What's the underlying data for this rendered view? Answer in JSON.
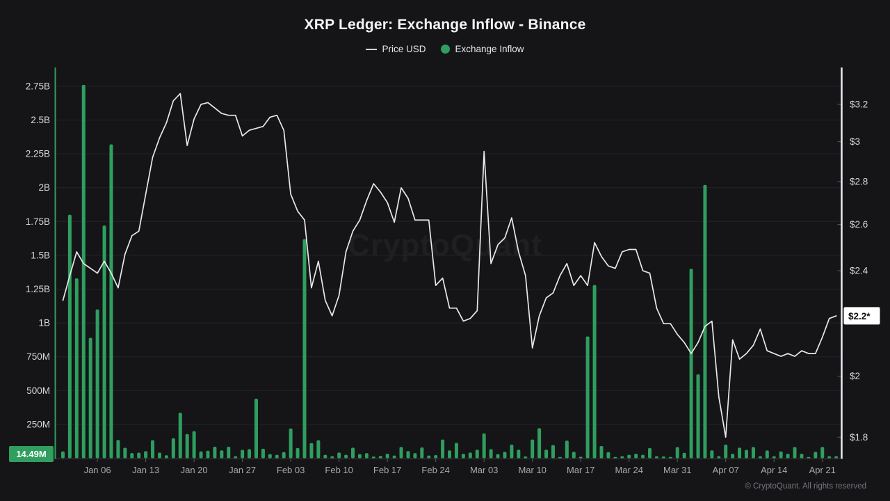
{
  "header": {
    "title": "XRP Ledger: Exchange Inflow - Binance"
  },
  "legend": [
    {
      "label": "Price USD",
      "type": "line",
      "color": "#d6d6da"
    },
    {
      "label": "Exchange Inflow",
      "type": "dot",
      "color": "#2f9e5f"
    }
  ],
  "watermark": "CryptoQuant",
  "footer": {
    "copyright": "© CryptoQuant. All rights reserved"
  },
  "colors": {
    "background": "#151518",
    "grid": "#242428",
    "bar": "#2f9e5f",
    "line": "#e8e8ea",
    "left_axis_line": "#2f9e5f",
    "right_axis_line": "#ececf0",
    "bottom_axis_line": "#3e3e43",
    "tick_mark": "#5a5a60",
    "tick_label": "#d8d8dc",
    "x_label": "#a8a8ae",
    "badge_left_bg": "#2f9e5f",
    "badge_left_text": "#ffffff",
    "badge_right_bg": "#ffffff",
    "badge_right_text": "#111114"
  },
  "left_axis": {
    "tick_labels": [
      "250M",
      "500M",
      "750M",
      "1B",
      "1.25B",
      "1.5B",
      "1.75B",
      "2B",
      "2.25B",
      "2.5B",
      "2.75B"
    ],
    "current_value_badge": "14.49M"
  },
  "right_axis": {
    "tick_labels": [
      "$1.8",
      "$2",
      "$2.2",
      "$2.4",
      "$2.6",
      "$2.8",
      "$3",
      "$3.2"
    ],
    "tick_values": [
      1.8,
      2,
      2.2,
      2.4,
      2.6,
      2.8,
      3,
      3.2
    ],
    "hidden_tick": 2.2,
    "current_price_badge": "$2.2*"
  },
  "x_axis": {
    "labels": [
      "Jan 06",
      "Jan 13",
      "Jan 20",
      "Jan 27",
      "Feb 03",
      "Feb 10",
      "Feb 17",
      "Feb 24",
      "Mar 03",
      "Mar 10",
      "Mar 17",
      "Mar 24",
      "Mar 31",
      "Apr 07",
      "Apr 14",
      "Apr 21"
    ]
  },
  "chart_data": {
    "type": "bar+line",
    "title": "XRP Ledger: Exchange Inflow - Binance",
    "grid": "horizontal",
    "legend_position": "top",
    "left_axis": {
      "scale": "linear",
      "unit": "XRP",
      "tick_step_millions": 250,
      "range_millions": [
        0,
        2870
      ]
    },
    "right_axis": {
      "scale": "log",
      "unit": "USD",
      "ticks": [
        1.8,
        2,
        2.2,
        2.4,
        2.6,
        2.8,
        3,
        3.2
      ]
    },
    "latest": {
      "exchange_inflow": "14.49M",
      "price_usd": "$2.2"
    },
    "dates": [
      "Jan 01",
      "Jan 02",
      "Jan 03",
      "Jan 04",
      "Jan 05",
      "Jan 06",
      "Jan 07",
      "Jan 08",
      "Jan 09",
      "Jan 10",
      "Jan 11",
      "Jan 12",
      "Jan 13",
      "Jan 14",
      "Jan 15",
      "Jan 16",
      "Jan 17",
      "Jan 18",
      "Jan 19",
      "Jan 20",
      "Jan 21",
      "Jan 22",
      "Jan 23",
      "Jan 24",
      "Jan 25",
      "Jan 26",
      "Jan 27",
      "Jan 28",
      "Jan 29",
      "Jan 30",
      "Jan 31",
      "Feb 01",
      "Feb 02",
      "Feb 03",
      "Feb 04",
      "Feb 05",
      "Feb 06",
      "Feb 07",
      "Feb 08",
      "Feb 09",
      "Feb 10",
      "Feb 11",
      "Feb 12",
      "Feb 13",
      "Feb 14",
      "Feb 15",
      "Feb 16",
      "Feb 17",
      "Feb 18",
      "Feb 19",
      "Feb 20",
      "Feb 21",
      "Feb 22",
      "Feb 23",
      "Feb 24",
      "Feb 25",
      "Feb 26",
      "Feb 27",
      "Feb 28",
      "Mar 01",
      "Mar 02",
      "Mar 03",
      "Mar 04",
      "Mar 05",
      "Mar 06",
      "Mar 07",
      "Mar 08",
      "Mar 09",
      "Mar 10",
      "Mar 11",
      "Mar 12",
      "Mar 13",
      "Mar 14",
      "Mar 15",
      "Mar 16",
      "Mar 17",
      "Mar 18",
      "Mar 19",
      "Mar 20",
      "Mar 21",
      "Mar 22",
      "Mar 23",
      "Mar 24",
      "Mar 25",
      "Mar 26",
      "Mar 27",
      "Mar 28",
      "Mar 29",
      "Mar 30",
      "Mar 31",
      "Apr 01",
      "Apr 02",
      "Apr 03",
      "Apr 04",
      "Apr 05",
      "Apr 06",
      "Apr 07",
      "Apr 08",
      "Apr 09",
      "Apr 10",
      "Apr 11",
      "Apr 12",
      "Apr 13",
      "Apr 14",
      "Apr 15",
      "Apr 16",
      "Apr 17",
      "Apr 18",
      "Apr 19",
      "Apr 20",
      "Apr 21",
      "Apr 22",
      "Apr 23"
    ],
    "series": [
      {
        "name": "Exchange Inflow",
        "type": "bar",
        "axis": "left",
        "unit": "millions XRP",
        "values_millions": [
          50,
          1800,
          1330,
          2760,
          890,
          1100,
          1720,
          2320,
          135,
          77,
          38,
          41,
          52,
          133,
          41,
          22,
          148,
          336,
          179,
          200,
          50,
          55,
          85,
          58,
          85,
          15,
          62,
          67,
          440,
          70,
          30,
          25,
          45,
          220,
          75,
          1620,
          112,
          133,
          25,
          15,
          42,
          25,
          78,
          30,
          37,
          12,
          17,
          33,
          20,
          83,
          53,
          37,
          80,
          20,
          23,
          138,
          58,
          113,
          33,
          42,
          63,
          183,
          67,
          30,
          47,
          100,
          63,
          13,
          138,
          222,
          63,
          97,
          8,
          130,
          47,
          10,
          900,
          1280,
          90,
          45,
          8,
          15,
          25,
          33,
          25,
          75,
          15,
          13,
          8,
          82,
          40,
          1400,
          620,
          2020,
          58,
          15,
          100,
          33,
          78,
          62,
          83,
          15,
          57,
          15,
          50,
          33,
          82,
          33,
          5,
          47,
          83,
          15,
          14.49
        ]
      },
      {
        "name": "Price USD",
        "type": "line",
        "axis": "right",
        "unit": "USD",
        "values": [
          2.28,
          2.38,
          2.48,
          2.43,
          2.41,
          2.39,
          2.44,
          2.39,
          2.33,
          2.47,
          2.55,
          2.57,
          2.74,
          2.92,
          3.02,
          3.1,
          3.22,
          3.26,
          2.98,
          3.12,
          3.2,
          3.21,
          3.18,
          3.15,
          3.14,
          3.14,
          3.03,
          3.06,
          3.07,
          3.08,
          3.13,
          3.14,
          3.06,
          2.74,
          2.66,
          2.62,
          2.33,
          2.44,
          2.28,
          2.22,
          2.3,
          2.48,
          2.57,
          2.62,
          2.71,
          2.79,
          2.75,
          2.7,
          2.61,
          2.77,
          2.72,
          2.62,
          2.62,
          2.62,
          2.34,
          2.37,
          2.25,
          2.25,
          2.2,
          2.21,
          2.24,
          2.95,
          2.43,
          2.51,
          2.54,
          2.63,
          2.48,
          2.38,
          2.1,
          2.22,
          2.29,
          2.31,
          2.38,
          2.43,
          2.34,
          2.38,
          2.34,
          2.52,
          2.46,
          2.42,
          2.41,
          2.48,
          2.49,
          2.49,
          2.4,
          2.39,
          2.25,
          2.19,
          2.19,
          2.15,
          2.12,
          2.08,
          2.12,
          2.18,
          2.2,
          1.93,
          1.8,
          2.13,
          2.06,
          2.08,
          2.11,
          2.17,
          2.09,
          2.08,
          2.07,
          2.08,
          2.07,
          2.09,
          2.08,
          2.08,
          2.14,
          2.21,
          2.22
        ]
      }
    ]
  }
}
